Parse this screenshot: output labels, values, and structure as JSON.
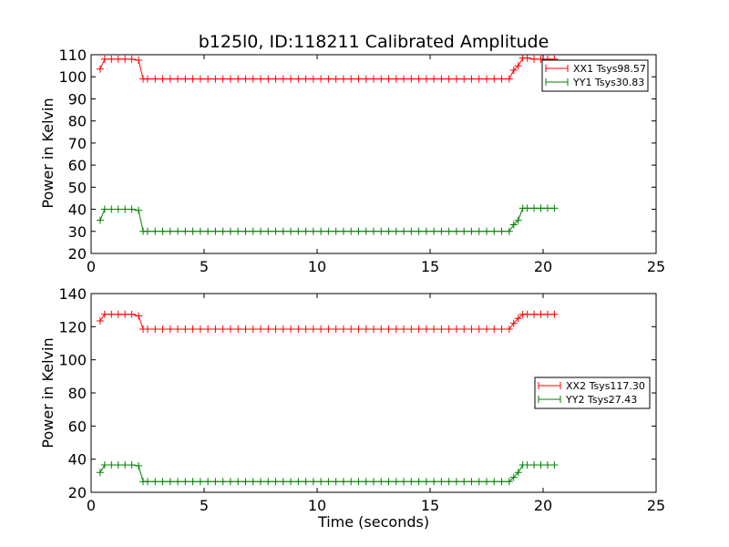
{
  "chart_data": [
    {
      "type": "line",
      "title": "b125l0, ID:118211 Calibrated Amplitude",
      "xlabel": "",
      "ylabel": "Power in Kelvin",
      "xlim": [
        0,
        25
      ],
      "ylim": [
        20,
        110
      ],
      "xticks": [
        "0",
        "5",
        "10",
        "15",
        "20",
        "25"
      ],
      "yticks": [
        "20",
        "30",
        "40",
        "50",
        "60",
        "70",
        "80",
        "90",
        "100",
        "110"
      ],
      "legend_position": "top-right",
      "marker": "+",
      "series": [
        {
          "name": "XX1 Tsys98.57",
          "color": "#ff0000",
          "x": [
            0.4,
            0.6,
            0.9,
            1.2,
            1.5,
            1.8,
            2.1,
            2.3,
            2.5,
            18.5,
            18.7,
            18.9,
            19.1,
            19.3,
            19.6,
            19.9,
            20.2,
            20.5
          ],
          "y": [
            103.5,
            108,
            108,
            108,
            108,
            108,
            107.5,
            99,
            99,
            99,
            103,
            105,
            108.5,
            108.5,
            108,
            108,
            108,
            108
          ]
        },
        {
          "name": "YY1 Tsys30.83",
          "color": "#008000",
          "x": [
            0.4,
            0.6,
            0.9,
            1.2,
            1.5,
            1.8,
            2.1,
            2.3,
            2.5,
            18.5,
            18.7,
            18.9,
            19.1,
            19.3,
            19.6,
            19.9,
            20.2,
            20.5
          ],
          "y": [
            35,
            40,
            40,
            40,
            40,
            40,
            39.5,
            30,
            30,
            30,
            33,
            35,
            40.5,
            40.5,
            40.5,
            40.5,
            40.5,
            40.5
          ]
        }
      ]
    },
    {
      "type": "line",
      "title": "",
      "xlabel": "Time (seconds)",
      "ylabel": "Power in Kelvin",
      "xlim": [
        0,
        25
      ],
      "ylim": [
        20,
        140
      ],
      "xticks": [
        "0",
        "5",
        "10",
        "15",
        "20",
        "25"
      ],
      "yticks": [
        "20",
        "40",
        "60",
        "80",
        "100",
        "120",
        "140"
      ],
      "legend_position": "center-right",
      "marker": "+",
      "series": [
        {
          "name": "XX2 Tsys117.30",
          "color": "#ff0000",
          "x": [
            0.4,
            0.6,
            0.9,
            1.2,
            1.5,
            1.8,
            2.1,
            2.3,
            2.5,
            18.5,
            18.7,
            18.9,
            19.1,
            19.3,
            19.6,
            19.9,
            20.2,
            20.5
          ],
          "y": [
            123.5,
            127.5,
            127.5,
            127.5,
            127.5,
            127.5,
            126.5,
            118.5,
            118.5,
            118.5,
            122,
            125,
            127.5,
            127.5,
            127.5,
            127.5,
            127.5,
            127.5
          ]
        },
        {
          "name": "YY2 Tsys27.43",
          "color": "#008000",
          "x": [
            0.4,
            0.6,
            0.9,
            1.2,
            1.5,
            1.8,
            2.1,
            2.3,
            2.5,
            18.5,
            18.7,
            18.9,
            19.1,
            19.3,
            19.6,
            19.9,
            20.2,
            20.5
          ],
          "y": [
            32,
            36.5,
            36.5,
            36.5,
            36.5,
            36.5,
            36,
            26.5,
            26.5,
            26.5,
            29,
            32,
            36.5,
            36.5,
            36.5,
            36.5,
            36.5,
            36.5
          ]
        }
      ]
    }
  ]
}
